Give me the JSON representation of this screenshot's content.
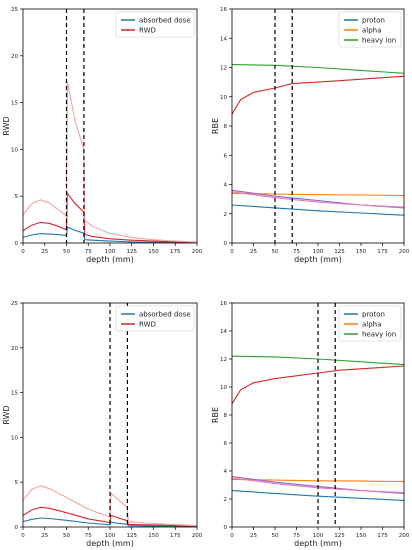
{
  "chart_data": [
    {
      "type": "line",
      "panel": "top-left",
      "xlabel": "depth (mm)",
      "ylabel": "RWD",
      "xlim": [
        0,
        200
      ],
      "ylim": [
        0,
        25
      ],
      "xticks": [
        0,
        25,
        50,
        75,
        100,
        125,
        150,
        175,
        200
      ],
      "yticks": [
        0,
        5,
        10,
        15,
        20,
        25
      ],
      "legend": "top-right",
      "legend_entries": [
        {
          "label": "absorbed dose",
          "color": "#1f77b4"
        },
        {
          "label": "RWD",
          "color": "#d62728"
        }
      ],
      "vlines": [
        50,
        70
      ],
      "series": [
        {
          "name": "absorbed dose",
          "color": "#1f77b4",
          "x": [
            0,
            10,
            20,
            30,
            40,
            50,
            51,
            60,
            70,
            71,
            80,
            100,
            125,
            150,
            175,
            200
          ],
          "y": [
            0.6,
            0.85,
            1.0,
            0.95,
            0.9,
            0.8,
            1.7,
            1.35,
            1.05,
            0.35,
            0.3,
            0.2,
            0.12,
            0.08,
            0.05,
            0.03
          ]
        },
        {
          "color": "#d62728",
          "x": [
            0,
            10,
            20,
            30,
            40,
            50,
            51,
            60,
            70,
            71,
            80,
            100,
            125,
            150,
            175,
            200
          ],
          "y": [
            1.3,
            1.9,
            2.2,
            2.1,
            1.8,
            1.4,
            5.3,
            4.2,
            3.3,
            0.9,
            0.7,
            0.45,
            0.3,
            0.2,
            0.12,
            0.06
          ]
        },
        {
          "color": "#f4a3a3",
          "x": [
            0,
            10,
            20,
            30,
            40,
            50,
            51,
            60,
            70,
            71,
            80,
            100,
            125,
            150,
            175,
            200
          ],
          "y": [
            3.0,
            4.2,
            4.6,
            4.3,
            3.6,
            2.9,
            17.2,
            13.0,
            10.0,
            2.4,
            1.8,
            1.0,
            0.6,
            0.35,
            0.2,
            0.1
          ]
        }
      ]
    },
    {
      "type": "line",
      "panel": "top-right",
      "xlabel": "depth (mm)",
      "ylabel": "RBE",
      "xlim": [
        0,
        200
      ],
      "ylim": [
        0,
        16
      ],
      "xticks": [
        0,
        25,
        50,
        75,
        100,
        125,
        150,
        175,
        200
      ],
      "yticks": [
        0,
        2,
        4,
        6,
        8,
        10,
        12,
        14,
        16
      ],
      "legend": "top-right",
      "legend_entries": [
        {
          "label": "proton",
          "color": "#1f77b4"
        },
        {
          "label": "alpha",
          "color": "#ff7f0e"
        },
        {
          "label": "heavy ion",
          "color": "#2ca02c"
        }
      ],
      "vlines": [
        50,
        70
      ],
      "series": [
        {
          "name": "proton",
          "color": "#1f77b4",
          "x": [
            0,
            50,
            100,
            150,
            200
          ],
          "y": [
            2.6,
            2.4,
            2.2,
            2.05,
            1.9
          ]
        },
        {
          "name": "alpha",
          "color": "#ff7f0e",
          "x": [
            0,
            50,
            100,
            150,
            200
          ],
          "y": [
            3.4,
            3.35,
            3.3,
            3.28,
            3.25
          ]
        },
        {
          "name": "heavy ion",
          "color": "#2ca02c",
          "x": [
            0,
            50,
            100,
            150,
            200
          ],
          "y": [
            12.2,
            12.15,
            12.0,
            11.8,
            11.6
          ]
        },
        {
          "color": "#9467bd",
          "x": [
            0,
            50,
            100,
            150,
            200
          ],
          "y": [
            3.6,
            3.2,
            2.9,
            2.6,
            2.4
          ]
        },
        {
          "color": "#e377c2",
          "x": [
            0,
            50,
            100,
            150,
            200
          ],
          "y": [
            3.5,
            3.1,
            2.8,
            2.6,
            2.45
          ]
        },
        {
          "color": "#d62728",
          "x": [
            0,
            10,
            25,
            50,
            70,
            100,
            125,
            150,
            175,
            200
          ],
          "y": [
            8.8,
            9.8,
            10.3,
            10.6,
            10.9,
            11.0,
            11.1,
            11.2,
            11.3,
            11.4
          ]
        }
      ]
    },
    {
      "type": "line",
      "panel": "bottom-left",
      "xlabel": "depth (mm)",
      "ylabel": "RWD",
      "xlim": [
        0,
        200
      ],
      "ylim": [
        0,
        25
      ],
      "xticks": [
        0,
        25,
        50,
        75,
        100,
        125,
        150,
        175,
        200
      ],
      "yticks": [
        0,
        5,
        10,
        15,
        20,
        25
      ],
      "legend": "top-right",
      "legend_entries": [
        {
          "label": "absorbed dose",
          "color": "#1f77b4"
        },
        {
          "label": "RWD",
          "color": "#d62728"
        }
      ],
      "vlines": [
        100,
        120
      ],
      "series": [
        {
          "name": "absorbed dose",
          "color": "#1f77b4",
          "x": [
            0,
            10,
            20,
            30,
            50,
            75,
            100,
            101,
            110,
            120,
            121,
            140,
            160,
            180,
            200
          ],
          "y": [
            0.6,
            0.85,
            1.0,
            0.95,
            0.75,
            0.45,
            0.25,
            0.55,
            0.4,
            0.3,
            0.15,
            0.12,
            0.1,
            0.08,
            0.05
          ]
        },
        {
          "color": "#d62728",
          "x": [
            0,
            10,
            20,
            30,
            50,
            75,
            100,
            101,
            110,
            120,
            121,
            140,
            160,
            180,
            200
          ],
          "y": [
            1.3,
            1.9,
            2.2,
            2.1,
            1.6,
            0.9,
            0.5,
            1.3,
            1.0,
            0.7,
            0.3,
            0.25,
            0.2,
            0.15,
            0.1
          ]
        },
        {
          "color": "#f4a3a3",
          "x": [
            0,
            10,
            20,
            30,
            50,
            75,
            100,
            101,
            110,
            120,
            121,
            140,
            160,
            180,
            200
          ],
          "y": [
            3.0,
            4.2,
            4.6,
            4.3,
            3.3,
            2.0,
            1.1,
            3.8,
            3.0,
            2.2,
            0.6,
            0.45,
            0.35,
            0.25,
            0.15
          ]
        }
      ]
    },
    {
      "type": "line",
      "panel": "bottom-right",
      "xlabel": "depth (mm)",
      "ylabel": "RBE",
      "xlim": [
        0,
        200
      ],
      "ylim": [
        0,
        16
      ],
      "xticks": [
        0,
        25,
        50,
        75,
        100,
        125,
        150,
        175,
        200
      ],
      "yticks": [
        0,
        2,
        4,
        6,
        8,
        10,
        12,
        14,
        16
      ],
      "legend": "top-right",
      "legend_entries": [
        {
          "label": "proton",
          "color": "#1f77b4"
        },
        {
          "label": "alpha",
          "color": "#ff7f0e"
        },
        {
          "label": "heavy ion",
          "color": "#2ca02c"
        }
      ],
      "vlines": [
        100,
        120
      ],
      "series": [
        {
          "name": "proton",
          "color": "#1f77b4",
          "x": [
            0,
            50,
            100,
            150,
            200
          ],
          "y": [
            2.6,
            2.4,
            2.2,
            2.05,
            1.9
          ]
        },
        {
          "name": "alpha",
          "color": "#ff7f0e",
          "x": [
            0,
            50,
            100,
            150,
            200
          ],
          "y": [
            3.4,
            3.35,
            3.3,
            3.28,
            3.25
          ]
        },
        {
          "name": "heavy ion",
          "color": "#2ca02c",
          "x": [
            0,
            50,
            100,
            150,
            200
          ],
          "y": [
            12.2,
            12.15,
            12.0,
            11.8,
            11.6
          ]
        },
        {
          "color": "#9467bd",
          "x": [
            0,
            50,
            100,
            150,
            200
          ],
          "y": [
            3.6,
            3.2,
            2.9,
            2.6,
            2.4
          ]
        },
        {
          "color": "#e377c2",
          "x": [
            0,
            50,
            100,
            150,
            200
          ],
          "y": [
            3.5,
            3.1,
            2.8,
            2.6,
            2.45
          ]
        },
        {
          "color": "#d62728",
          "x": [
            0,
            10,
            25,
            50,
            75,
            100,
            125,
            150,
            175,
            200
          ],
          "y": [
            8.8,
            9.8,
            10.3,
            10.6,
            10.8,
            11.0,
            11.2,
            11.3,
            11.4,
            11.5
          ]
        }
      ]
    }
  ]
}
